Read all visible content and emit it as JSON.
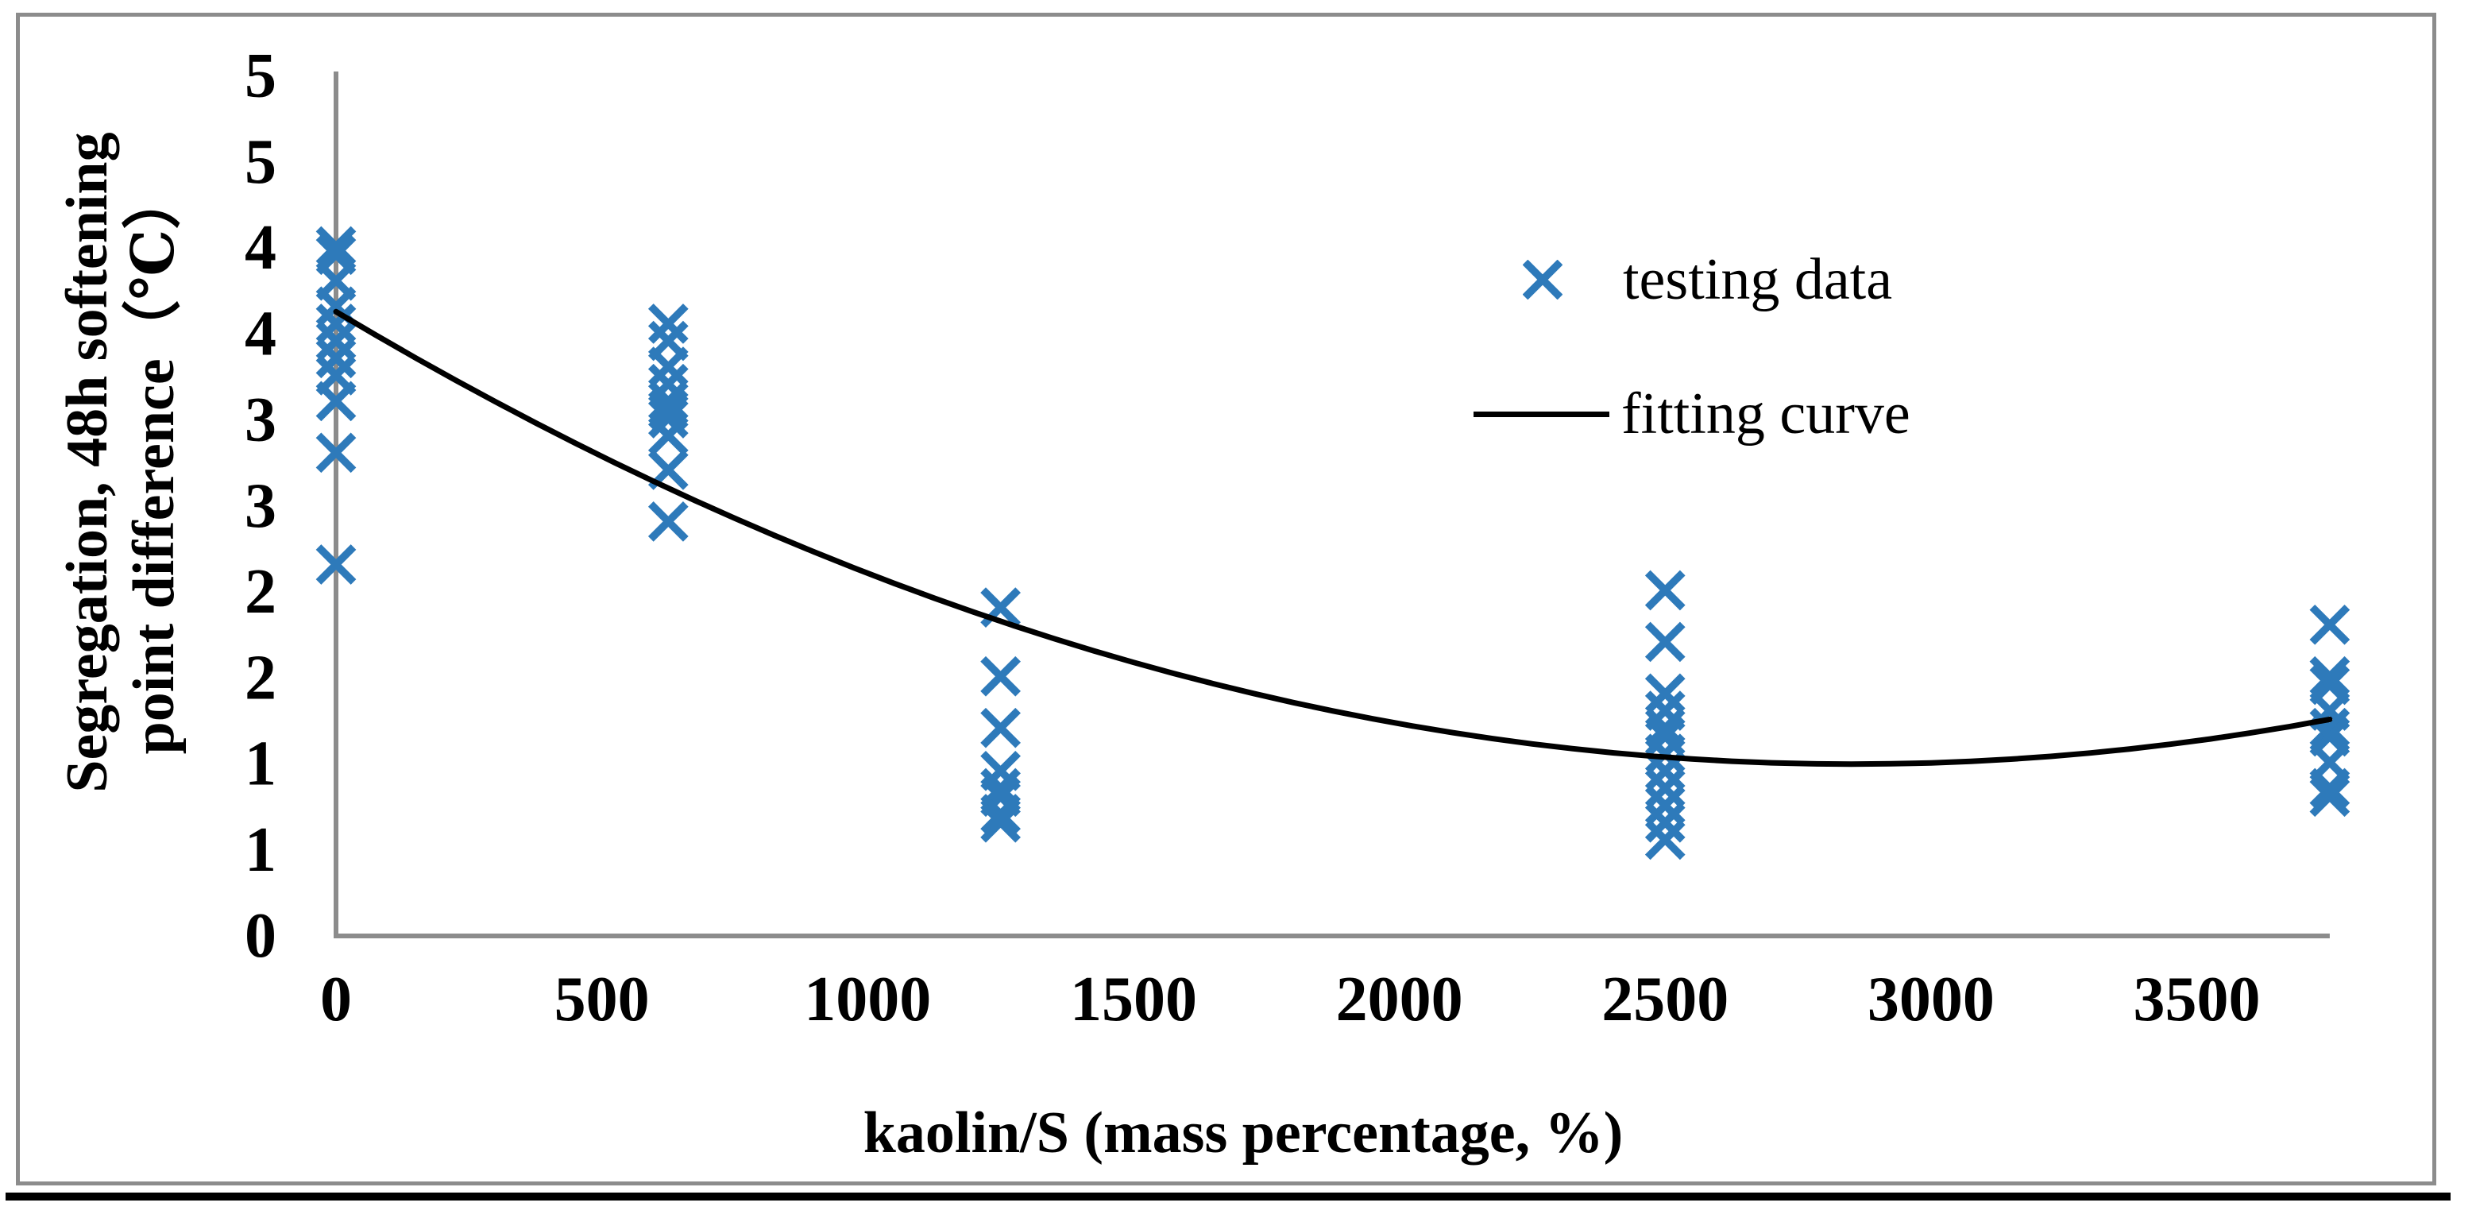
{
  "colors": {
    "marker_blue": "#2E7ABA",
    "axis_gray": "#8C8C8C",
    "frame_gray": "#8C8C8C",
    "curve_black": "#000000"
  },
  "chart_data": {
    "type": "scatter",
    "title": "",
    "xlabel": "kaolin/S (mass percentage, %)",
    "ylabel": "Segregation, 48h softening point difference（℃）",
    "ylabel_lines": [
      "Segregation, 48h softening",
      "point difference（℃）"
    ],
    "xlim": [
      0,
      3750
    ],
    "ylim": [
      0,
      5
    ],
    "grid": false,
    "x_ticks": [
      {
        "value": 0,
        "label": "0"
      },
      {
        "value": 500,
        "label": "500"
      },
      {
        "value": 1000,
        "label": "1000"
      },
      {
        "value": 1500,
        "label": "1500"
      },
      {
        "value": 2000,
        "label": "2000"
      },
      {
        "value": 2500,
        "label": "2500"
      },
      {
        "value": 3000,
        "label": "3000"
      },
      {
        "value": 3500,
        "label": "3500"
      }
    ],
    "y_ticks": [
      {
        "value": 5.0,
        "label": "5"
      },
      {
        "value": 4.5,
        "label": "5"
      },
      {
        "value": 4.0,
        "label": "4"
      },
      {
        "value": 3.5,
        "label": "4"
      },
      {
        "value": 3.0,
        "label": "3"
      },
      {
        "value": 2.5,
        "label": "3"
      },
      {
        "value": 2.0,
        "label": "2"
      },
      {
        "value": 1.5,
        "label": "2"
      },
      {
        "value": 1.0,
        "label": "1"
      },
      {
        "value": 0.5,
        "label": "1"
      },
      {
        "value": 0.0,
        "label": "0"
      }
    ],
    "legend_position": "upper-right-inside",
    "series": [
      {
        "name": "testing data",
        "type": "scatter",
        "marker": "x",
        "color": "#2E7ABA",
        "points": [
          [
            0,
            4.0
          ],
          [
            0,
            3.95
          ],
          [
            0,
            3.8
          ],
          [
            0,
            3.65
          ],
          [
            0,
            3.55
          ],
          [
            0,
            3.45
          ],
          [
            0,
            3.35
          ],
          [
            0,
            3.25
          ],
          [
            0,
            3.1
          ],
          [
            0,
            2.8
          ],
          [
            0,
            2.15
          ],
          [
            625,
            3.55
          ],
          [
            625,
            3.45
          ],
          [
            625,
            3.3
          ],
          [
            625,
            3.2
          ],
          [
            625,
            3.1
          ],
          [
            625,
            3.05
          ],
          [
            625,
            3.0
          ],
          [
            625,
            2.9
          ],
          [
            625,
            2.7
          ],
          [
            625,
            2.4
          ],
          [
            1250,
            1.9
          ],
          [
            1250,
            1.5
          ],
          [
            1250,
            1.2
          ],
          [
            1250,
            0.95
          ],
          [
            1250,
            0.85
          ],
          [
            1250,
            0.8
          ],
          [
            1250,
            0.7
          ],
          [
            1250,
            0.65
          ],
          [
            2500,
            2.0
          ],
          [
            2500,
            1.7
          ],
          [
            2500,
            1.4
          ],
          [
            2500,
            1.3
          ],
          [
            2500,
            1.2
          ],
          [
            2500,
            1.15
          ],
          [
            2500,
            1.05
          ],
          [
            2500,
            0.95
          ],
          [
            2500,
            0.85
          ],
          [
            2500,
            0.75
          ],
          [
            2500,
            0.65
          ],
          [
            2500,
            0.55
          ],
          [
            3750,
            1.8
          ],
          [
            3750,
            1.5
          ],
          [
            3750,
            1.45
          ],
          [
            3750,
            1.3
          ],
          [
            3750,
            1.2
          ],
          [
            3750,
            1.15
          ],
          [
            3750,
            1.0
          ],
          [
            3750,
            0.85
          ],
          [
            3750,
            0.8
          ]
        ]
      },
      {
        "name": "fitting curve",
        "type": "line",
        "color": "#000000",
        "quadratic_fit": {
          "a": 3.232e-07,
          "b": -0.001844,
          "c": 3.62,
          "x_domain": [
            0,
            3750
          ]
        }
      }
    ]
  },
  "legend": {
    "items": [
      {
        "label": "testing data",
        "marker": "x-marker"
      },
      {
        "label": "fitting curve",
        "marker": "line-segment"
      }
    ]
  }
}
